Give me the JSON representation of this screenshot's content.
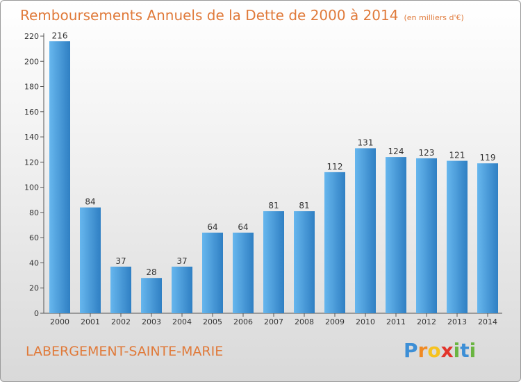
{
  "header": {
    "title": "Remboursements Annuels de la Dette de 2000 à 2014",
    "unit": "(en milliers d'€)"
  },
  "footer": {
    "commune": "LABERGEMENT-SAINTE-MARIE",
    "logo": [
      "P",
      "r",
      "o",
      "x",
      "i",
      "t",
      "i"
    ]
  },
  "colors": {
    "bar_light": "#67b7ee",
    "bar_dark": "#2f7fc3",
    "title": "#e07a3a"
  },
  "chart_data": {
    "type": "bar",
    "title": "Remboursements Annuels de la Dette de 2000 à 2014",
    "xlabel": "",
    "ylabel": "",
    "categories": [
      "2000",
      "2001",
      "2002",
      "2003",
      "2004",
      "2005",
      "2006",
      "2007",
      "2008",
      "2009",
      "2010",
      "2011",
      "2012",
      "2013",
      "2014"
    ],
    "values": [
      216,
      84,
      37,
      28,
      37,
      64,
      64,
      81,
      81,
      112,
      131,
      124,
      123,
      121,
      119
    ],
    "ylim": [
      0,
      220
    ],
    "yticks": [
      0,
      20,
      40,
      60,
      80,
      100,
      120,
      140,
      160,
      180,
      200,
      220
    ],
    "grid": false
  }
}
